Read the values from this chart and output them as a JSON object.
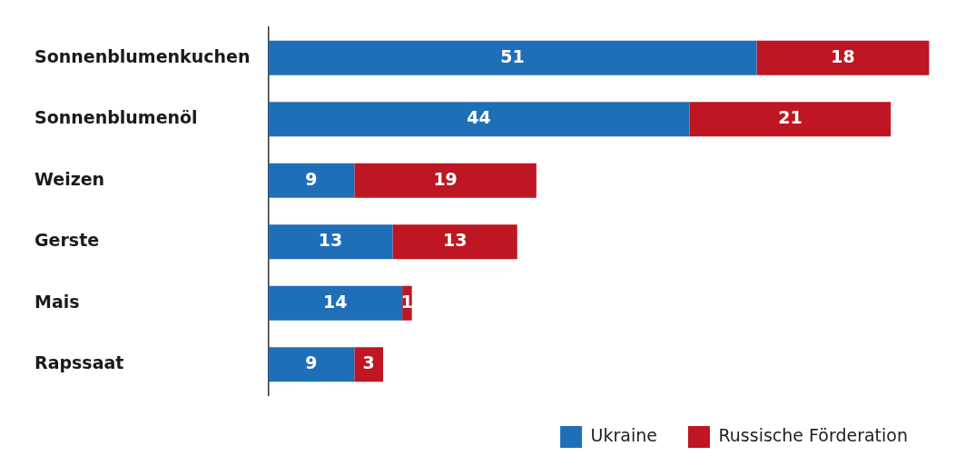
{
  "chart_data": {
    "type": "bar",
    "orientation": "horizontal",
    "stacked": true,
    "data_labels": true,
    "tick_labels": "y",
    "grid": false,
    "legend": "bottom right",
    "categories": [
      "Sonnenblumenkuchen",
      "Sonnenblumenöl",
      "Weizen",
      "Gerste",
      "Mais",
      "Rapssaat"
    ],
    "series": [
      {
        "name": "Ukraine",
        "color": "#1f6fb8",
        "values": [
          51,
          44,
          9,
          13,
          14,
          9
        ]
      },
      {
        "name": "Russische Förderation",
        "color": "#be1622",
        "values": [
          18,
          21,
          19,
          13,
          1,
          3
        ]
      }
    ]
  }
}
